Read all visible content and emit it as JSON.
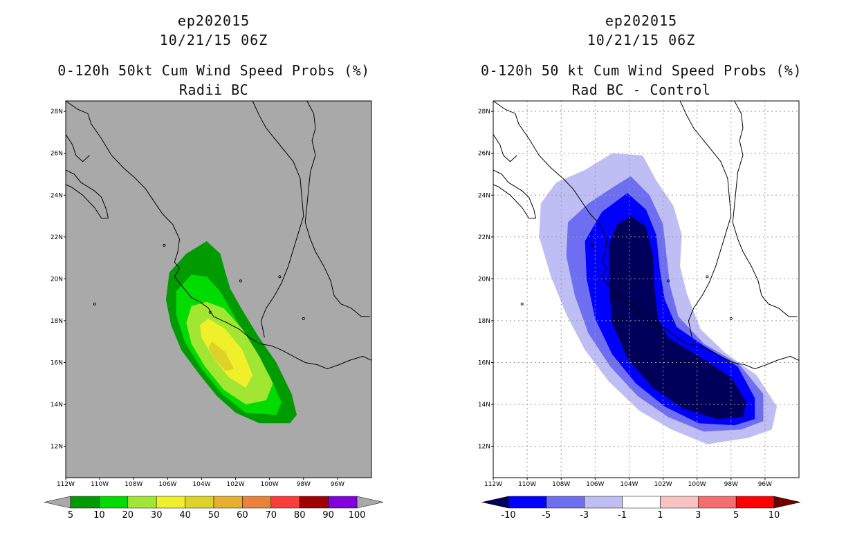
{
  "panels": [
    {
      "id": "left",
      "storm": "ep202015",
      "datetime": "10/21/15 06Z",
      "title": "0-120h 50kt Cum Wind Speed Probs (%)",
      "subtitle": "Radii BC",
      "background_color": "#a9a9a9",
      "colorbar": {
        "colors": [
          "#009b00",
          "#00dc00",
          "#a0e632",
          "#f0f02a",
          "#dcd228",
          "#e6af2d",
          "#eb823c",
          "#fa3c3c",
          "#a00000",
          "#8200dc"
        ],
        "labels": [
          "5",
          "10",
          "20",
          "30",
          "40",
          "50",
          "60",
          "70",
          "80",
          "90",
          "100"
        ],
        "left_arrow_color": "#a9a9a9",
        "right_arrow_color": "#a9a9a9"
      }
    },
    {
      "id": "right",
      "storm": "ep202015",
      "datetime": "10/21/15 06Z",
      "title": "0-120h 50 kt Cum Wind Speed Probs (%)",
      "subtitle": "Rad BC - Control",
      "background_color": "#ffffff",
      "colorbar": {
        "colors": [
          "#0000ff",
          "#6e6ef0",
          "#bebef5",
          "#ffffff",
          "#fac3c3",
          "#f56e6e",
          "#ff0000"
        ],
        "labels": [
          "-10",
          "-5",
          "-3",
          "-1",
          "1",
          "3",
          "5",
          "10"
        ],
        "left_arrow_color": "#00005a",
        "right_arrow_color": "#6e0000"
      }
    }
  ],
  "chart_data": [
    {
      "type": "heatmap",
      "title": "0-120h 50kt Cum Wind Speed Probs (%)",
      "subtitle": "Radii BC",
      "units": "%",
      "xlim": [
        -112,
        -94
      ],
      "ylim": [
        10.5,
        28.5
      ],
      "x_ticks": [
        "112W",
        "110W",
        "108W",
        "106W",
        "104W",
        "102W",
        "100W",
        "98W",
        "96W"
      ],
      "y_ticks": [
        "12N",
        "14N",
        "16N",
        "18N",
        "20N",
        "22N",
        "24N",
        "26N",
        "28N"
      ],
      "grid": false,
      "levels": [
        5,
        10,
        20,
        30,
        40,
        50,
        60,
        70,
        80,
        90,
        100
      ],
      "contours": [
        {
          "level": 5,
          "polygon": [
            [
              -103.7,
              21.8
            ],
            [
              -102.9,
              21.2
            ],
            [
              -102.6,
              20.3
            ],
            [
              -102.3,
              19.5
            ],
            [
              -101.6,
              18.5
            ],
            [
              -100.7,
              17.3
            ],
            [
              -99.6,
              16.0
            ],
            [
              -98.7,
              14.5
            ],
            [
              -98.4,
              13.5
            ],
            [
              -98.8,
              13.1
            ],
            [
              -100.6,
              13.1
            ],
            [
              -102.0,
              13.6
            ],
            [
              -103.1,
              14.4
            ],
            [
              -104.1,
              15.4
            ],
            [
              -105.2,
              16.6
            ],
            [
              -105.8,
              17.8
            ],
            [
              -106.1,
              19.0
            ],
            [
              -105.9,
              20.3
            ],
            [
              -104.9,
              21.2
            ]
          ]
        },
        {
          "level": 10,
          "polygon": [
            [
              -104.6,
              20.2
            ],
            [
              -103.7,
              20.1
            ],
            [
              -102.9,
              19.4
            ],
            [
              -102.0,
              18.1
            ],
            [
              -101.1,
              16.8
            ],
            [
              -100.0,
              15.4
            ],
            [
              -99.3,
              14.1
            ],
            [
              -99.6,
              13.5
            ],
            [
              -101.4,
              13.6
            ],
            [
              -102.8,
              14.5
            ],
            [
              -104.0,
              15.7
            ],
            [
              -105.0,
              17.0
            ],
            [
              -105.5,
              18.3
            ],
            [
              -105.5,
              19.4
            ]
          ]
        },
        {
          "level": 20,
          "polygon": [
            [
              -103.7,
              18.9
            ],
            [
              -102.7,
              18.6
            ],
            [
              -101.6,
              17.6
            ],
            [
              -100.6,
              16.3
            ],
            [
              -99.8,
              15.0
            ],
            [
              -100.2,
              14.2
            ],
            [
              -101.4,
              14.0
            ],
            [
              -102.7,
              14.7
            ],
            [
              -103.8,
              15.8
            ],
            [
              -104.6,
              16.9
            ],
            [
              -104.9,
              17.9
            ],
            [
              -104.6,
              18.7
            ]
          ]
        },
        {
          "level": 30,
          "polygon": [
            [
              -103.6,
              18.1
            ],
            [
              -102.6,
              17.6
            ],
            [
              -101.6,
              16.6
            ],
            [
              -101.0,
              15.4
            ],
            [
              -101.4,
              14.8
            ],
            [
              -102.4,
              15.3
            ],
            [
              -103.3,
              16.2
            ],
            [
              -104.0,
              17.2
            ],
            [
              -104.1,
              17.8
            ]
          ]
        },
        {
          "level": 40,
          "polygon": [
            [
              -103.4,
              17.0
            ],
            [
              -102.6,
              16.5
            ],
            [
              -102.1,
              15.7
            ],
            [
              -102.6,
              15.6
            ],
            [
              -103.3,
              16.2
            ],
            [
              -103.6,
              16.7
            ]
          ]
        }
      ]
    },
    {
      "type": "heatmap",
      "title": "0-120h 50 kt Cum Wind Speed Probs (%)",
      "subtitle": "Rad BC - Control",
      "units": "%",
      "xlim": [
        -112,
        -94
      ],
      "ylim": [
        10.5,
        28.5
      ],
      "x_ticks": [
        "112W",
        "110W",
        "108W",
        "106W",
        "104W",
        "102W",
        "100W",
        "98W",
        "96W"
      ],
      "y_ticks": [
        "12N",
        "14N",
        "16N",
        "18N",
        "20N",
        "22N",
        "24N",
        "26N",
        "28N"
      ],
      "grid": true,
      "levels": [
        -10,
        -5,
        -3,
        -1,
        1,
        3,
        5,
        10
      ],
      "contours": [
        {
          "level": -1,
          "polygon": [
            [
              -105.0,
              26.0
            ],
            [
              -103.2,
              25.9
            ],
            [
              -102.4,
              24.7
            ],
            [
              -101.4,
              23.5
            ],
            [
              -100.9,
              22.1
            ],
            [
              -101.0,
              20.6
            ],
            [
              -100.6,
              19.3
            ],
            [
              -99.8,
              17.6
            ],
            [
              -98.4,
              16.5
            ],
            [
              -96.5,
              15.4
            ],
            [
              -95.3,
              13.9
            ],
            [
              -95.6,
              12.8
            ],
            [
              -97.0,
              12.4
            ],
            [
              -99.4,
              12.1
            ],
            [
              -101.5,
              12.8
            ],
            [
              -103.4,
              13.7
            ],
            [
              -105.2,
              15.1
            ],
            [
              -106.6,
              16.6
            ],
            [
              -107.7,
              18.3
            ],
            [
              -108.6,
              20.1
            ],
            [
              -109.3,
              22.0
            ],
            [
              -109.2,
              23.6
            ],
            [
              -108.3,
              24.6
            ],
            [
              -106.6,
              25.2
            ]
          ]
        },
        {
          "level": -3,
          "polygon": [
            [
              -103.9,
              24.9
            ],
            [
              -102.8,
              24.0
            ],
            [
              -102.0,
              22.6
            ],
            [
              -101.8,
              21.1
            ],
            [
              -101.6,
              19.7
            ],
            [
              -101.1,
              18.2
            ],
            [
              -99.6,
              16.9
            ],
            [
              -97.5,
              15.9
            ],
            [
              -96.1,
              14.5
            ],
            [
              -96.1,
              13.2
            ],
            [
              -97.4,
              12.8
            ],
            [
              -99.6,
              12.7
            ],
            [
              -101.7,
              13.4
            ],
            [
              -103.5,
              14.4
            ],
            [
              -105.1,
              15.8
            ],
            [
              -106.4,
              17.4
            ],
            [
              -107.2,
              19.2
            ],
            [
              -107.7,
              21.1
            ],
            [
              -107.6,
              22.7
            ],
            [
              -106.4,
              23.6
            ],
            [
              -104.9,
              24.4
            ]
          ]
        },
        {
          "level": -5,
          "polygon": [
            [
              -104.1,
              24.1
            ],
            [
              -103.0,
              23.3
            ],
            [
              -102.4,
              22.1
            ],
            [
              -102.2,
              20.5
            ],
            [
              -101.9,
              19.0
            ],
            [
              -101.2,
              17.7
            ],
            [
              -99.6,
              16.8
            ],
            [
              -97.6,
              15.8
            ],
            [
              -96.6,
              14.3
            ],
            [
              -96.6,
              13.3
            ],
            [
              -97.8,
              13.0
            ],
            [
              -99.9,
              13.1
            ],
            [
              -101.9,
              13.9
            ],
            [
              -103.6,
              15.0
            ],
            [
              -105.0,
              16.4
            ],
            [
              -106.0,
              18.1
            ],
            [
              -106.5,
              20.0
            ],
            [
              -106.6,
              21.8
            ],
            [
              -105.6,
              23.2
            ]
          ]
        },
        {
          "level": -10,
          "polygon": [
            [
              -103.9,
              23.0
            ],
            [
              -103.0,
              22.5
            ],
            [
              -102.6,
              21.1
            ],
            [
              -102.5,
              19.5
            ],
            [
              -102.3,
              18.1
            ],
            [
              -101.7,
              17.2
            ],
            [
              -99.9,
              16.3
            ],
            [
              -98.0,
              15.3
            ],
            [
              -97.1,
              14.1
            ],
            [
              -97.3,
              13.4
            ],
            [
              -98.8,
              13.3
            ],
            [
              -100.8,
              13.8
            ],
            [
              -102.6,
              14.8
            ],
            [
              -104.1,
              16.2
            ],
            [
              -105.0,
              17.9
            ],
            [
              -105.2,
              19.8
            ],
            [
              -105.2,
              21.6
            ],
            [
              -104.7,
              22.6
            ]
          ]
        }
      ]
    }
  ]
}
